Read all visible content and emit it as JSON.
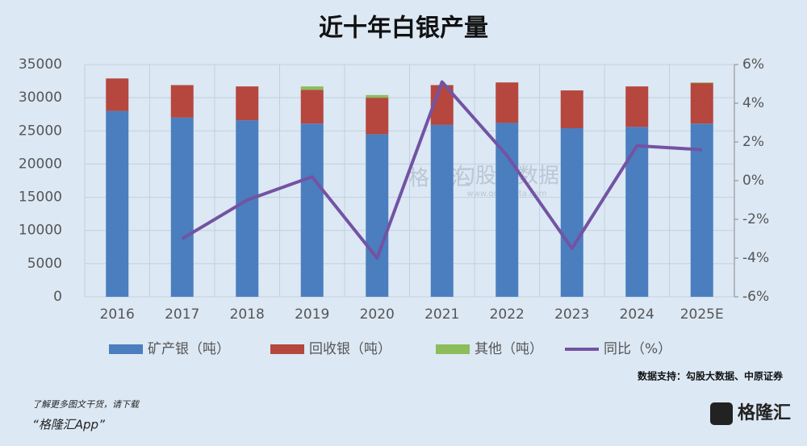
{
  "chart_data": {
    "type": "bar",
    "title": "近十年白银产量",
    "categories": [
      "2016",
      "2017",
      "2018",
      "2019",
      "2020",
      "2021",
      "2022",
      "2023",
      "2024",
      "2025E"
    ],
    "series": [
      {
        "name": "矿产银（吨）",
        "color": "#4a7ebf",
        "values": [
          28000,
          27000,
          26600,
          26100,
          24500,
          25900,
          26200,
          25400,
          25600,
          26100
        ]
      },
      {
        "name": "回收银（吨）",
        "color": "#b5473f",
        "values": [
          4900,
          4900,
          5100,
          5100,
          5500,
          6000,
          6100,
          5700,
          6100,
          6100
        ]
      },
      {
        "name": "其他（吨）",
        "color": "#8bbd5a",
        "values": [
          0,
          0,
          0,
          500,
          400,
          0,
          0,
          0,
          0,
          100
        ]
      },
      {
        "name": "同比（%）",
        "color": "#7353a3",
        "type": "line",
        "axis": "y2",
        "values": [
          null,
          -3.0,
          -1.0,
          0.2,
          -4.0,
          5.1,
          1.3,
          -3.5,
          1.8,
          1.6
        ]
      }
    ],
    "ylim": [
      0,
      35000
    ],
    "yticks": [
      0,
      5000,
      10000,
      15000,
      20000,
      25000,
      30000,
      35000
    ],
    "y2lim": [
      -6,
      6
    ],
    "y2ticks": [
      {
        "value": -6,
        "label": "-6%"
      },
      {
        "value": -4,
        "label": "-4%"
      },
      {
        "value": -2,
        "label": "-2%"
      },
      {
        "value": 0,
        "label": "0%"
      },
      {
        "value": 2,
        "label": "2%"
      },
      {
        "value": 4,
        "label": "4%"
      },
      {
        "value": 6,
        "label": "6%"
      }
    ],
    "grid": true,
    "legend": "bottom",
    "source": "数据支持：勾股大数据、中原证券",
    "watermark": [
      "格隆汇",
      "勾股大数据",
      "www.gogudata.com"
    ]
  },
  "footer": {
    "line1": "了解更多图文干货，请下载",
    "line2": "“格隆汇App”",
    "logo": "格隆汇"
  }
}
